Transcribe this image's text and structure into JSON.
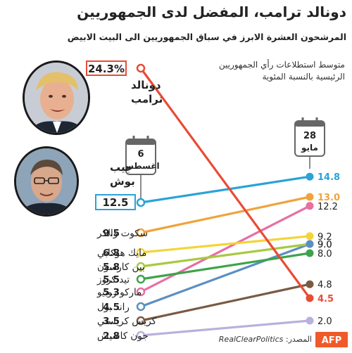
{
  "title": "دونالد ترامب، المفضل لدى الجمهوريين",
  "subtitle": "المرشحون العشرة الابرز في سباق الجمهوريين الى البيت الابيض",
  "note": "متوسط استطلاعات رأي الجمهوريين الرئيسية بالنسبة المئوية",
  "source": {
    "label": "المصدر:",
    "brand": "RealClearPolitics"
  },
  "logo": "AFP",
  "chart_data": {
    "type": "line",
    "x": [
      "28 مايو",
      "6 اغسطس"
    ],
    "x_labels": {
      "start": {
        "day": "28",
        "month": "مايو"
      },
      "end": {
        "day": "6",
        "month": "اغسطس"
      }
    },
    "ylabel": "",
    "series": [
      {
        "name": "دونالد ترامب",
        "name_lines": [
          "دونالد",
          "ترامب"
        ],
        "values": [
          4.5,
          24.3
        ],
        "color": "#e94b35",
        "start_label": "4.5",
        "end_label": "24.3%"
      },
      {
        "name": "جيب بوش",
        "name_lines": [
          "جيب",
          "بوش"
        ],
        "values": [
          14.8,
          12.5
        ],
        "color": "#2aa3d6",
        "start_label": "14.8",
        "end_label": "12.5"
      },
      {
        "name": "سكوت والكر",
        "values": [
          13.0,
          9.5
        ],
        "color": "#f0a33c",
        "start_label": "13.0",
        "end_label": "9.5"
      },
      {
        "name": "مايك هوكابي",
        "values": [
          9.2,
          6.8
        ],
        "color": "#f4d43a",
        "start_label": "9.2",
        "end_label": "6.8"
      },
      {
        "name": "بين كارسون",
        "values": [
          9.0,
          5.8
        ],
        "color": "#a8c940",
        "start_label": "9.0",
        "end_label": "5.8"
      },
      {
        "name": "تيد كروز",
        "values": [
          8.0,
          5.5
        ],
        "color": "#3ea34a",
        "start_label": "8.0",
        "end_label": "5.5"
      },
      {
        "name": "ماركو روبيو",
        "values": [
          12.2,
          5.3
        ],
        "color": "#e76fa3",
        "start_label": "12.2",
        "end_label": "5.3"
      },
      {
        "name": "راند بول",
        "values": [
          9.0,
          4.5
        ],
        "color": "#5a8fc2",
        "start_label": "9.0",
        "end_label": "4.5"
      },
      {
        "name": "كريس كريستي",
        "values": [
          4.8,
          3.5
        ],
        "color": "#7a5a44",
        "start_label": "4.8",
        "end_label": "3.5"
      },
      {
        "name": "جون كاسيش",
        "values": [
          2.0,
          2.8
        ],
        "color": "#b9b0dc",
        "start_label": "2.0",
        "end_label": "2.8"
      }
    ]
  },
  "colors": {
    "calendar": "#666666",
    "text": "#222222",
    "logo_bg": "#f05a28"
  }
}
